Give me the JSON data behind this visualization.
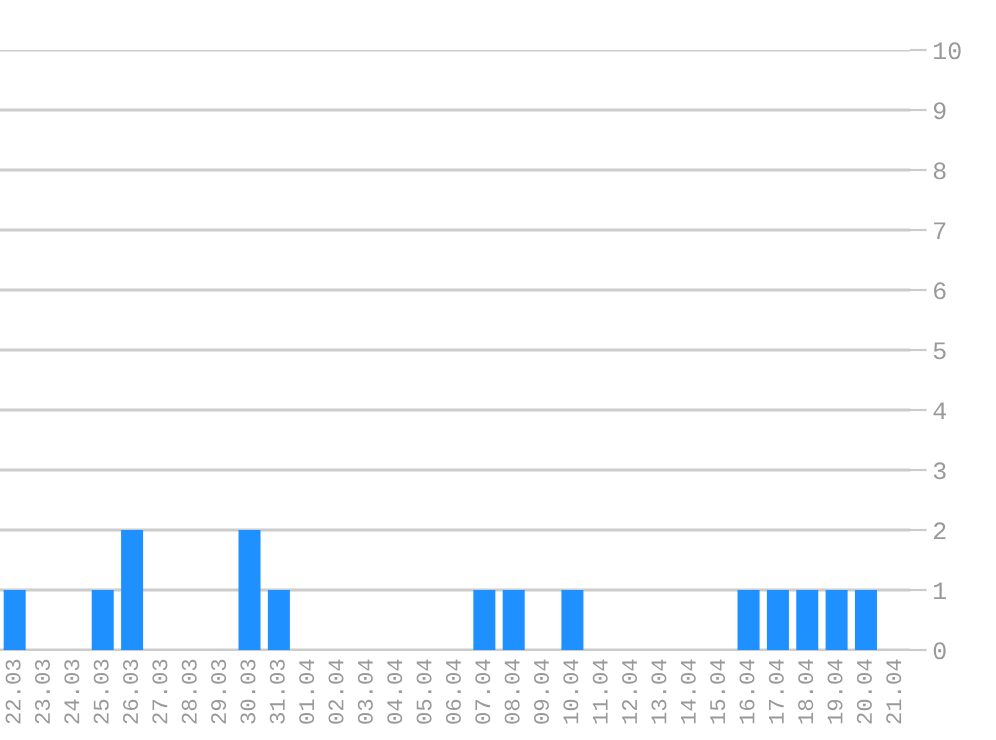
{
  "chart_data": {
    "type": "bar",
    "categories": [
      "22.03",
      "23.03",
      "24.03",
      "25.03",
      "26.03",
      "27.03",
      "28.03",
      "29.03",
      "30.03",
      "31.03",
      "01.04",
      "02.04",
      "03.04",
      "04.04",
      "05.04",
      "06.04",
      "07.04",
      "08.04",
      "09.04",
      "10.04",
      "11.04",
      "12.04",
      "13.04",
      "14.04",
      "15.04",
      "16.04",
      "17.04",
      "18.04",
      "19.04",
      "20.04",
      "21.04"
    ],
    "values": [
      1,
      0,
      0,
      1,
      2,
      0,
      0,
      0,
      2,
      1,
      0,
      0,
      0,
      0,
      0,
      0,
      1,
      1,
      0,
      1,
      0,
      0,
      0,
      0,
      0,
      1,
      1,
      1,
      1,
      1,
      0
    ],
    "color": "#1e90ff",
    "ylim": [
      0,
      10
    ],
    "yticks": [
      0,
      1,
      2,
      3,
      4,
      5,
      6,
      7,
      8,
      9,
      10
    ],
    "grid": "y"
  }
}
